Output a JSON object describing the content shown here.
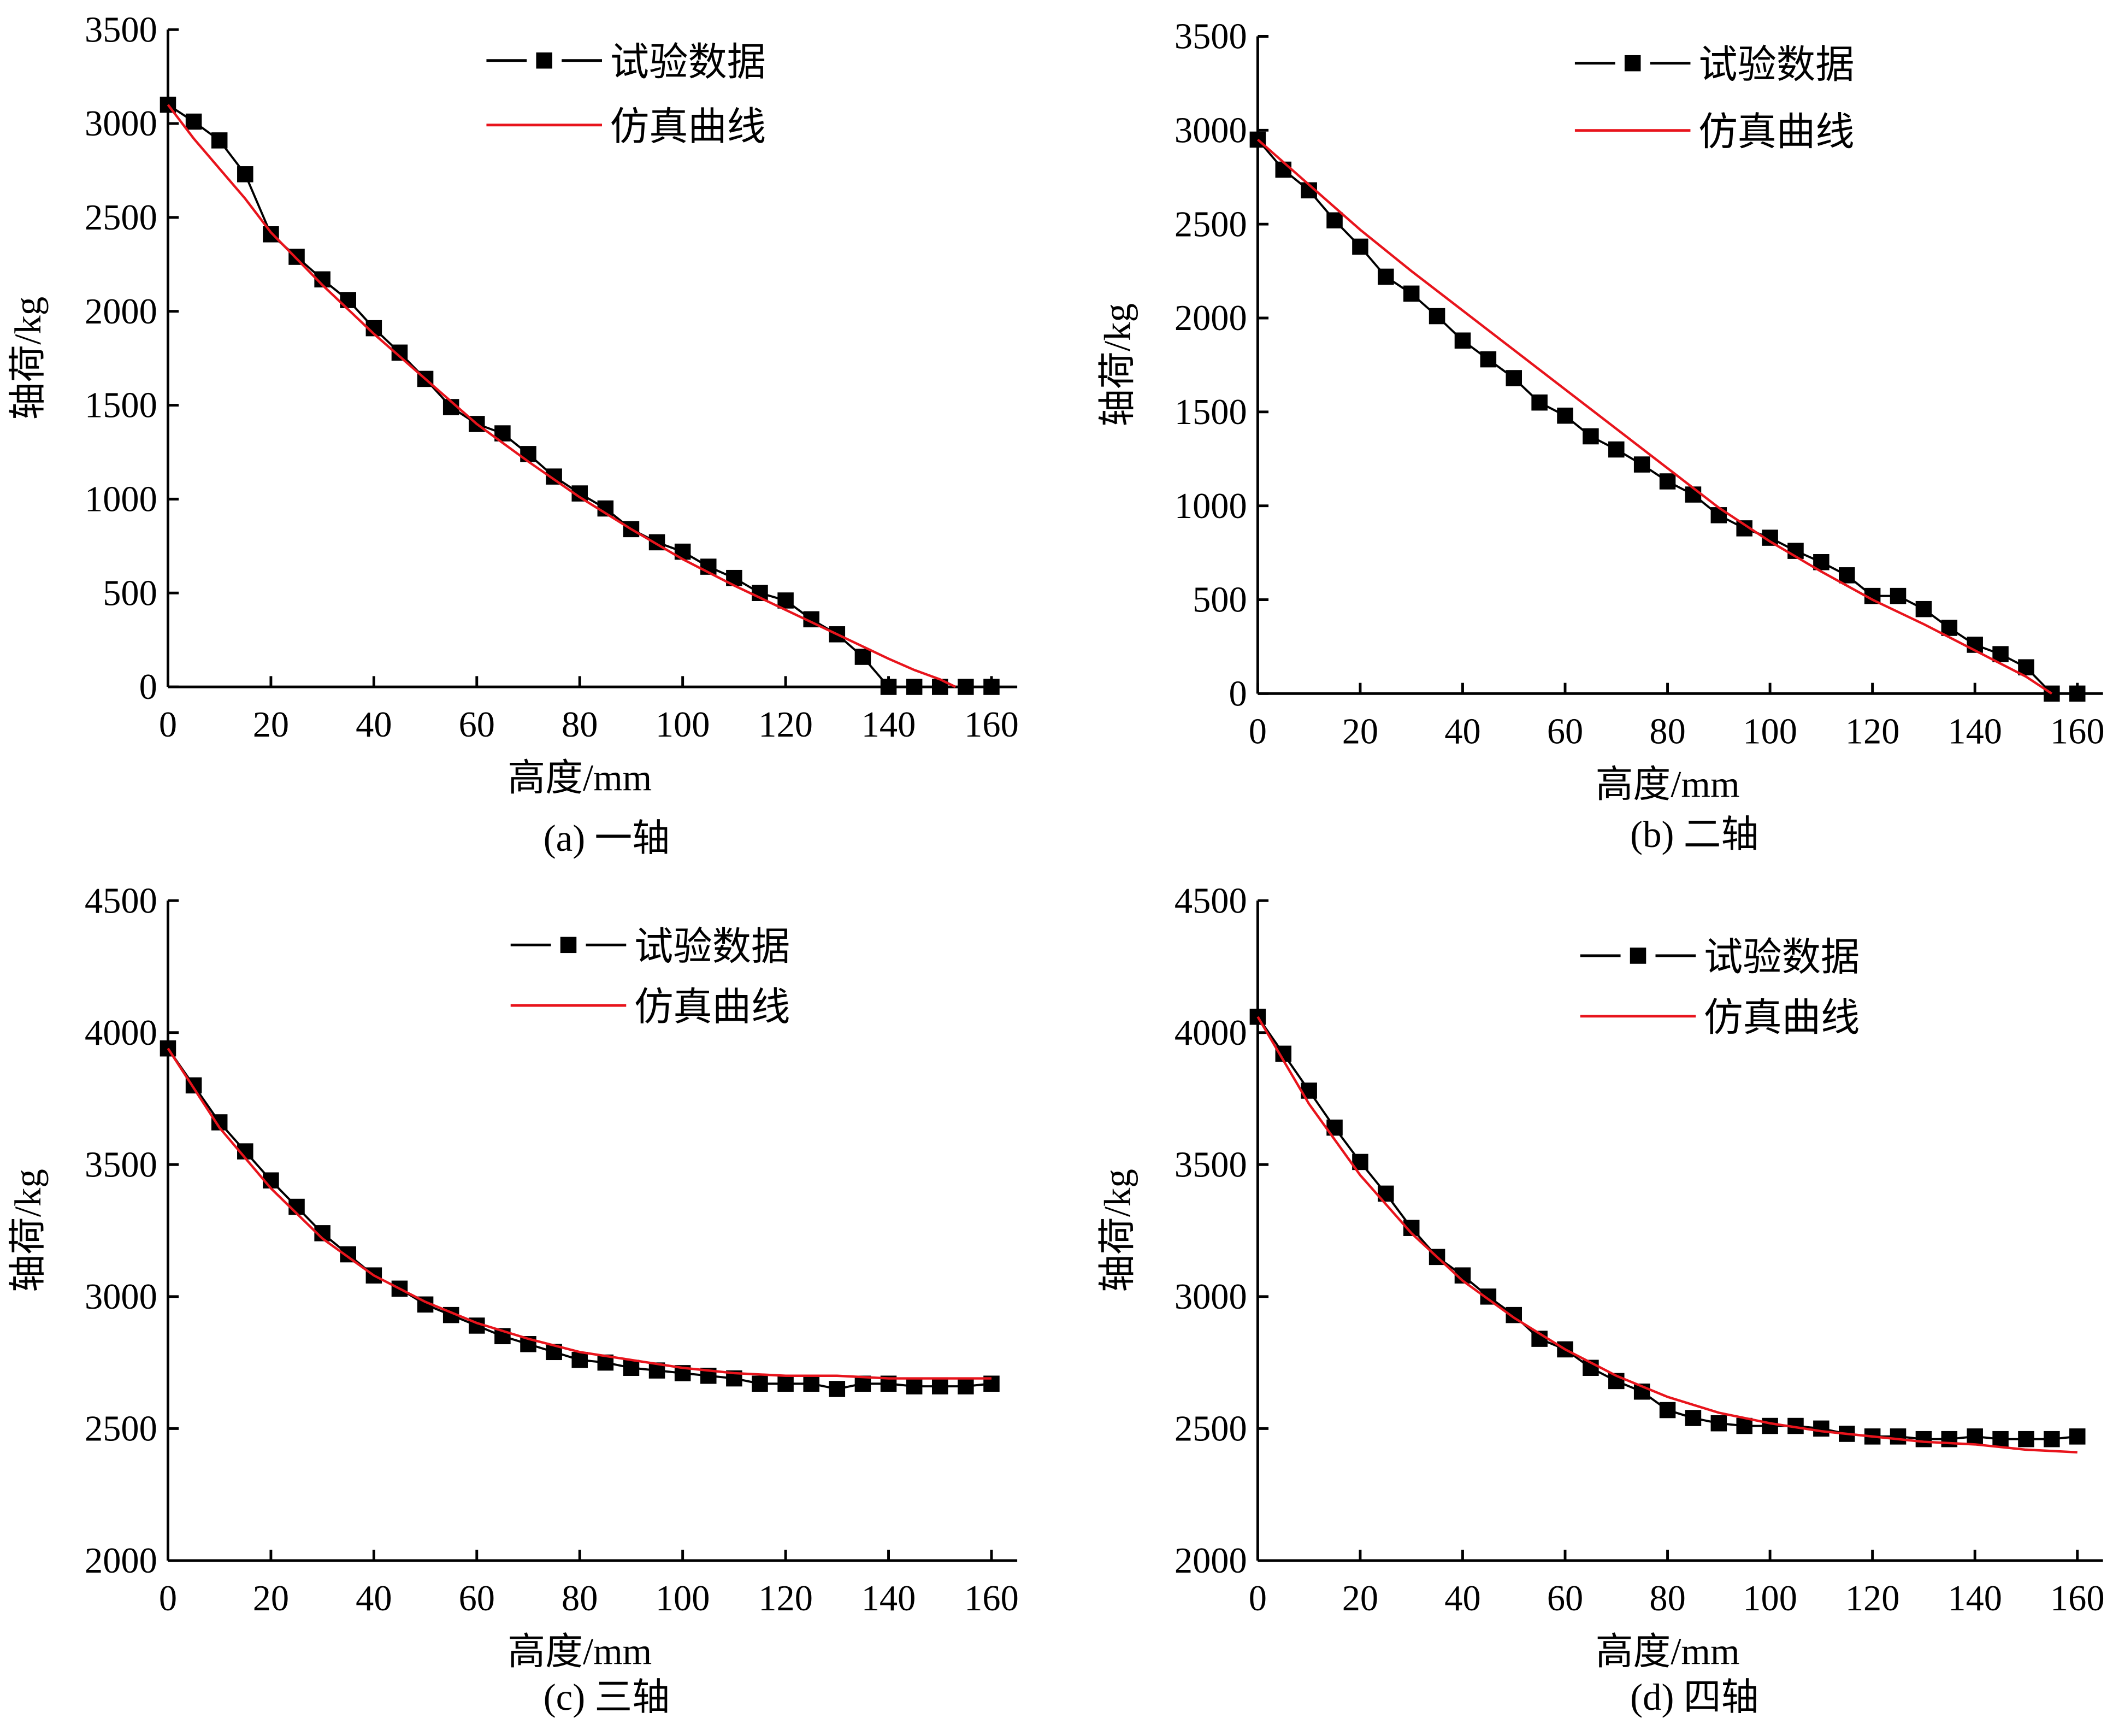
{
  "chart_data": [
    {
      "type": "line",
      "caption": "(a) 一轴",
      "xlabel": "高度/mm",
      "ylabel": "轴荷/kg",
      "xlim": [
        0,
        165
      ],
      "ylim": [
        0,
        3500
      ],
      "xticks": [
        0,
        20,
        40,
        60,
        80,
        100,
        120,
        140,
        160
      ],
      "yticks": [
        0,
        500,
        1000,
        1500,
        2000,
        2500,
        3000,
        3500
      ],
      "legend_position": "top-center",
      "grid": false,
      "series": [
        {
          "name": "试验数据",
          "color": "#000000",
          "marker": "square",
          "x": [
            0,
            5,
            10,
            15,
            20,
            25,
            30,
            35,
            40,
            45,
            50,
            55,
            60,
            65,
            70,
            75,
            80,
            85,
            90,
            95,
            100,
            105,
            110,
            115,
            120,
            125,
            130,
            135,
            140,
            145,
            150,
            155,
            160
          ],
          "y": [
            3100,
            3010,
            2910,
            2730,
            2410,
            2290,
            2170,
            2060,
            1910,
            1780,
            1640,
            1490,
            1400,
            1350,
            1240,
            1120,
            1030,
            950,
            840,
            770,
            720,
            640,
            580,
            500,
            460,
            360,
            280,
            160,
            0,
            0,
            0,
            0,
            0
          ]
        },
        {
          "name": "仿真曲线",
          "color": "#e8141c",
          "marker": "none",
          "x": [
            0,
            5,
            10,
            15,
            20,
            30,
            40,
            50,
            60,
            70,
            80,
            90,
            100,
            110,
            120,
            130,
            140,
            145,
            150,
            153
          ],
          "y": [
            3100,
            2920,
            2760,
            2600,
            2420,
            2140,
            1880,
            1640,
            1400,
            1200,
            1010,
            840,
            680,
            540,
            410,
            280,
            150,
            90,
            40,
            0
          ]
        }
      ]
    },
    {
      "type": "line",
      "caption": "(b) 二轴",
      "xlabel": "高度/mm",
      "ylabel": "轴荷/kg",
      "xlim": [
        0,
        165
      ],
      "ylim": [
        0,
        3500
      ],
      "xticks": [
        0,
        20,
        40,
        60,
        80,
        100,
        120,
        140,
        160
      ],
      "yticks": [
        0,
        500,
        1000,
        1500,
        2000,
        2500,
        3000,
        3500
      ],
      "legend_position": "top-center",
      "grid": false,
      "series": [
        {
          "name": "试验数据",
          "color": "#000000",
          "marker": "square",
          "x": [
            0,
            5,
            10,
            15,
            20,
            25,
            30,
            35,
            40,
            45,
            50,
            55,
            60,
            65,
            70,
            75,
            80,
            85,
            90,
            95,
            100,
            105,
            110,
            115,
            120,
            125,
            130,
            135,
            140,
            145,
            150,
            155,
            160
          ],
          "y": [
            2950,
            2790,
            2680,
            2520,
            2380,
            2220,
            2130,
            2010,
            1880,
            1780,
            1680,
            1550,
            1480,
            1370,
            1300,
            1220,
            1130,
            1060,
            950,
            880,
            830,
            760,
            700,
            630,
            520,
            520,
            450,
            350,
            260,
            210,
            140,
            0,
            0
          ]
        },
        {
          "name": "仿真曲线",
          "color": "#e8141c",
          "marker": "none",
          "x": [
            0,
            10,
            20,
            30,
            40,
            50,
            60,
            70,
            80,
            90,
            100,
            110,
            120,
            130,
            140,
            150,
            155
          ],
          "y": [
            2950,
            2710,
            2470,
            2250,
            2040,
            1830,
            1620,
            1410,
            1200,
            990,
            810,
            650,
            500,
            370,
            230,
            90,
            0
          ]
        }
      ]
    },
    {
      "type": "line",
      "caption": "(c) 三轴",
      "xlabel": "高度/mm",
      "ylabel": "轴荷/kg",
      "xlim": [
        0,
        165
      ],
      "ylim": [
        2000,
        4500
      ],
      "xticks": [
        0,
        20,
        40,
        60,
        80,
        100,
        120,
        140,
        160
      ],
      "yticks": [
        2000,
        2500,
        3000,
        3500,
        4000,
        4500
      ],
      "legend_position": "top-center",
      "grid": false,
      "series": [
        {
          "name": "试验数据",
          "color": "#000000",
          "marker": "square",
          "x": [
            0,
            5,
            10,
            15,
            20,
            25,
            30,
            35,
            40,
            45,
            50,
            55,
            60,
            65,
            70,
            75,
            80,
            85,
            90,
            95,
            100,
            105,
            110,
            115,
            120,
            125,
            130,
            135,
            140,
            145,
            150,
            155,
            160
          ],
          "y": [
            3940,
            3800,
            3660,
            3550,
            3440,
            3340,
            3240,
            3160,
            3080,
            3030,
            2970,
            2930,
            2890,
            2850,
            2820,
            2790,
            2760,
            2750,
            2730,
            2720,
            2710,
            2700,
            2690,
            2670,
            2670,
            2670,
            2650,
            2670,
            2670,
            2660,
            2660,
            2660,
            2670
          ]
        },
        {
          "name": "仿真曲线",
          "color": "#e8141c",
          "marker": "none",
          "x": [
            0,
            10,
            20,
            30,
            40,
            50,
            60,
            70,
            80,
            90,
            100,
            110,
            120,
            130,
            140,
            150,
            160
          ],
          "y": [
            3940,
            3640,
            3410,
            3220,
            3080,
            2980,
            2900,
            2840,
            2790,
            2760,
            2730,
            2710,
            2700,
            2700,
            2690,
            2690,
            2690
          ]
        }
      ]
    },
    {
      "type": "line",
      "caption": "(d) 四轴",
      "xlabel": "高度/mm",
      "ylabel": "轴荷/kg",
      "xlim": [
        0,
        165
      ],
      "ylim": [
        2000,
        4500
      ],
      "xticks": [
        0,
        20,
        40,
        60,
        80,
        100,
        120,
        140,
        160
      ],
      "yticks": [
        2000,
        2500,
        3000,
        3500,
        4000,
        4500
      ],
      "legend_position": "top-center",
      "grid": false,
      "series": [
        {
          "name": "试验数据",
          "color": "#000000",
          "marker": "square",
          "x": [
            0,
            5,
            10,
            15,
            20,
            25,
            30,
            35,
            40,
            45,
            50,
            55,
            60,
            65,
            70,
            75,
            80,
            85,
            90,
            95,
            100,
            105,
            110,
            115,
            120,
            125,
            130,
            135,
            140,
            145,
            150,
            155,
            160
          ],
          "y": [
            4060,
            3920,
            3780,
            3640,
            3510,
            3390,
            3260,
            3150,
            3080,
            3000,
            2930,
            2840,
            2800,
            2730,
            2680,
            2640,
            2570,
            2540,
            2520,
            2510,
            2510,
            2510,
            2500,
            2480,
            2470,
            2470,
            2460,
            2460,
            2470,
            2460,
            2460,
            2460,
            2470
          ]
        },
        {
          "name": "仿真曲线",
          "color": "#e8141c",
          "marker": "none",
          "x": [
            0,
            10,
            20,
            30,
            40,
            50,
            60,
            70,
            80,
            90,
            100,
            110,
            120,
            130,
            140,
            150,
            160
          ],
          "y": [
            4060,
            3730,
            3460,
            3240,
            3060,
            2920,
            2800,
            2700,
            2620,
            2560,
            2520,
            2490,
            2470,
            2450,
            2440,
            2420,
            2410
          ]
        }
      ]
    }
  ]
}
